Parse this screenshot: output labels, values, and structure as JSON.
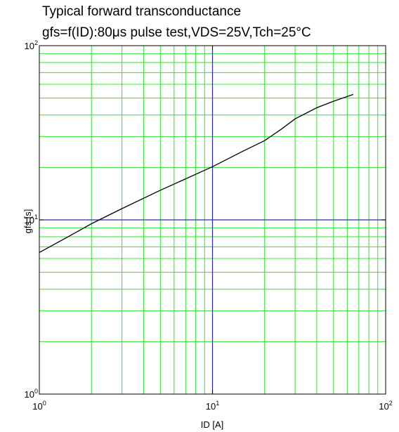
{
  "chart_data": {
    "type": "line",
    "title": "Typical forward transconductance",
    "subtitle": "gfs=f(ID):80μs pulse test,VDS=25V,Tch=25°C",
    "xlabel": "ID [A]",
    "ylabel": "gfs [s]",
    "xscale": "log",
    "yscale": "log",
    "xlim": [
      1,
      100
    ],
    "ylim": [
      1,
      100
    ],
    "grid": true,
    "x_ticks": [
      {
        "base": "10",
        "exp": "0",
        "value": 1
      },
      {
        "base": "10",
        "exp": "1",
        "value": 10
      },
      {
        "base": "10",
        "exp": "2",
        "value": 100
      }
    ],
    "y_ticks": [
      {
        "base": "10",
        "exp": "0",
        "value": 1
      },
      {
        "base": "10",
        "exp": "1",
        "value": 10
      },
      {
        "base": "10",
        "exp": "2",
        "value": 100
      }
    ],
    "colors": {
      "minor_grid": "#33e033",
      "major_grid": "#2b2bb0",
      "curve": "#000000",
      "frame": "#000000"
    },
    "series": [
      {
        "x": [
          1,
          1.5,
          2,
          3,
          5,
          7,
          10,
          15,
          20,
          25,
          30,
          40,
          50,
          65
        ],
        "y": [
          6.5,
          8.1,
          9.5,
          11.6,
          14.8,
          17.2,
          20.2,
          24.8,
          28.5,
          33.2,
          38.0,
          44.0,
          48.0,
          52.5
        ]
      }
    ]
  }
}
